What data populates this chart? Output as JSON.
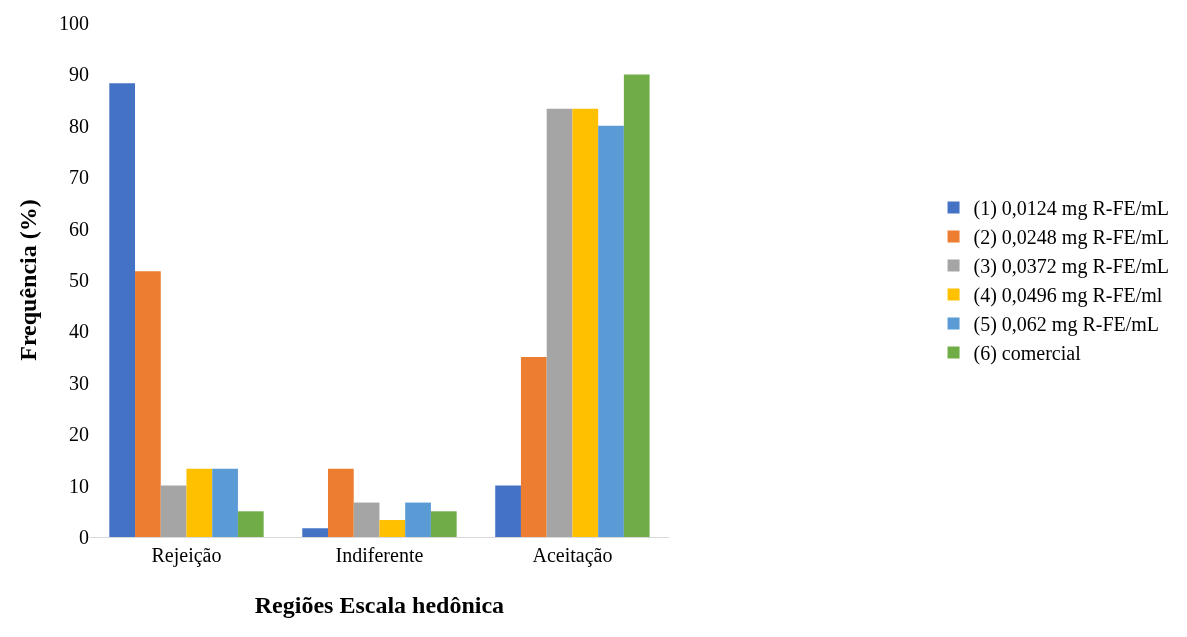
{
  "chart_data": {
    "type": "bar",
    "xlabel": "Regiões Escala hedônica",
    "ylabel": "Frequência (%)",
    "categories": [
      "Rejeição",
      "Indiferente",
      "Aceitação"
    ],
    "series": [
      {
        "name": "(1) 0,0124 mg R-FE/mL",
        "color": "#4472c4",
        "values": [
          88.3,
          1.7,
          10
        ]
      },
      {
        "name": "(2) 0,0248 mg R-FE/mL",
        "color": "#ed7d31",
        "values": [
          51.7,
          13.3,
          35
        ]
      },
      {
        "name": "(3) 0,0372 mg R-FE/mL",
        "color": "#a5a5a5",
        "values": [
          10,
          6.7,
          83.3
        ]
      },
      {
        "name": "(4) 0,0496 mg R-FE/ml",
        "color": "#ffc000",
        "values": [
          13.3,
          3.3,
          83.3
        ]
      },
      {
        "name": "(5) 0,062 mg R-FE/mL",
        "color": "#5b9bd5",
        "values": [
          13.3,
          6.7,
          80
        ]
      },
      {
        "name": "(6) comercial",
        "color": "#70ad47",
        "values": [
          5,
          5,
          90
        ]
      }
    ],
    "ylim": [
      0,
      100
    ],
    "yticks": [
      0,
      10,
      20,
      30,
      40,
      50,
      60,
      70,
      80,
      90,
      100
    ],
    "grid": false,
    "legend": "right"
  }
}
